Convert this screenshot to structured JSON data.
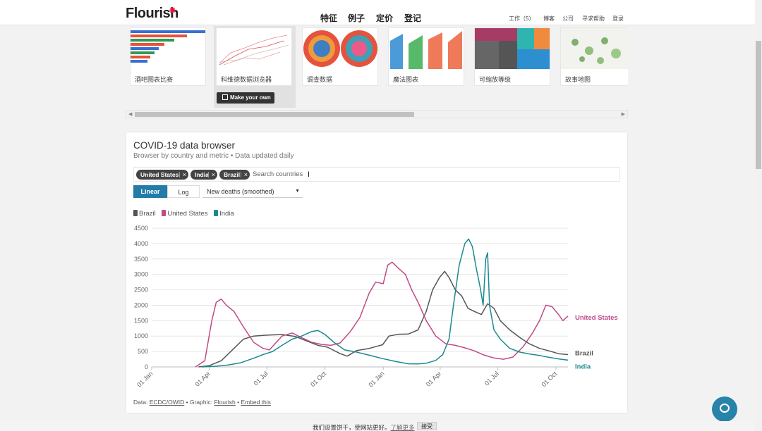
{
  "header": {
    "logo": "Flourish",
    "nav": [
      "特征",
      "例子",
      "定价",
      "登记"
    ],
    "right": [
      "工作（5）",
      "博客",
      "公司",
      "寻求帮助",
      "登录"
    ]
  },
  "gallery": {
    "cards": [
      {
        "label": "酒吧图表比赛",
        "icon": "bar-race-thumbnail"
      },
      {
        "label": "科维德数据浏览器",
        "icon": "line-chart-thumbnail"
      },
      {
        "label": "调查数据",
        "icon": "dot-cluster-thumbnail"
      },
      {
        "label": "魔法图表",
        "icon": "area-chart-thumbnail"
      },
      {
        "label": "可缩放等级",
        "icon": "treemap-thumbnail"
      },
      {
        "label": "故事地图",
        "icon": "map-thumbnail"
      }
    ],
    "make_button": "Make your own"
  },
  "chart_card": {
    "title": "COVID-19 data browser",
    "subtitle": "Browser by country and metric • Data updated daily",
    "chips": [
      "United States",
      "India",
      "Brazil"
    ],
    "search_placeholder": "Search countries",
    "scale_buttons": [
      "Linear",
      "Log"
    ],
    "metric_select": "New deaths (smoothed)",
    "footer": {
      "prefix": "Data: ",
      "data_source": "ECDC/OWID",
      "mid": " • Graphic: ",
      "graphic": "Flourish",
      "sep": " • ",
      "embed": "Embed this"
    }
  },
  "chart_data": {
    "type": "line",
    "title": "",
    "xlabel": "",
    "ylabel": "",
    "ylim": [
      0,
      4500
    ],
    "yticks": [
      0,
      500,
      1000,
      1500,
      2000,
      2500,
      3000,
      3500,
      4000,
      4500
    ],
    "xticks": [
      "01 Jan",
      "01 Apr",
      "01 Jul",
      "01 Oct",
      "01 Jan",
      "01 Apr",
      "01 Jul",
      "01 Oct"
    ],
    "x_tick_dates": [
      "2020-01-01",
      "2020-04-01",
      "2020-07-01",
      "2020-10-01",
      "2021-01-01",
      "2021-04-01",
      "2021-07-01",
      "2021-10-01"
    ],
    "x_range": [
      "2020-01-01",
      "2021-10-20"
    ],
    "grid": true,
    "legend": "top-left",
    "series": [
      {
        "name": "Brazil",
        "color": "#555555",
        "end_label": "Brazil",
        "points": [
          [
            "2020-03-15",
            0
          ],
          [
            "2020-04-01",
            40
          ],
          [
            "2020-04-20",
            200
          ],
          [
            "2020-05-10",
            600
          ],
          [
            "2020-05-25",
            900
          ],
          [
            "2020-06-10",
            1000
          ],
          [
            "2020-07-01",
            1030
          ],
          [
            "2020-07-25",
            1050
          ],
          [
            "2020-08-15",
            990
          ],
          [
            "2020-09-01",
            850
          ],
          [
            "2020-09-20",
            700
          ],
          [
            "2020-10-05",
            640
          ],
          [
            "2020-10-25",
            430
          ],
          [
            "2020-11-05",
            350
          ],
          [
            "2020-11-20",
            530
          ],
          [
            "2020-12-10",
            600
          ],
          [
            "2020-12-31",
            720
          ],
          [
            "2021-01-10",
            1000
          ],
          [
            "2021-01-25",
            1060
          ],
          [
            "2021-02-10",
            1070
          ],
          [
            "2021-02-25",
            1200
          ],
          [
            "2021-03-10",
            1800
          ],
          [
            "2021-03-20",
            2500
          ],
          [
            "2021-03-31",
            2900
          ],
          [
            "2021-04-08",
            3100
          ],
          [
            "2021-04-15",
            2900
          ],
          [
            "2021-04-25",
            2500
          ],
          [
            "2021-05-05",
            2300
          ],
          [
            "2021-05-15",
            1900
          ],
          [
            "2021-05-25",
            1800
          ],
          [
            "2021-06-05",
            1700
          ],
          [
            "2021-06-15",
            2050
          ],
          [
            "2021-06-25",
            1900
          ],
          [
            "2021-07-05",
            1500
          ],
          [
            "2021-07-20",
            1200
          ],
          [
            "2021-08-05",
            950
          ],
          [
            "2021-08-20",
            750
          ],
          [
            "2021-09-05",
            600
          ],
          [
            "2021-09-20",
            520
          ],
          [
            "2021-10-05",
            430
          ],
          [
            "2021-10-20",
            400
          ]
        ]
      },
      {
        "name": "United States",
        "color": "#c04a86",
        "end_label": "United States",
        "points": [
          [
            "2020-03-10",
            0
          ],
          [
            "2020-03-25",
            200
          ],
          [
            "2020-04-05",
            1500
          ],
          [
            "2020-04-12",
            2100
          ],
          [
            "2020-04-20",
            2200
          ],
          [
            "2020-04-28",
            2000
          ],
          [
            "2020-05-10",
            1800
          ],
          [
            "2020-05-25",
            1300
          ],
          [
            "2020-06-10",
            800
          ],
          [
            "2020-06-25",
            600
          ],
          [
            "2020-07-05",
            550
          ],
          [
            "2020-07-25",
            1000
          ],
          [
            "2020-08-10",
            1100
          ],
          [
            "2020-08-25",
            950
          ],
          [
            "2020-09-10",
            800
          ],
          [
            "2020-09-25",
            730
          ],
          [
            "2020-10-10",
            700
          ],
          [
            "2020-10-25",
            780
          ],
          [
            "2020-11-10",
            1150
          ],
          [
            "2020-11-25",
            1600
          ],
          [
            "2020-12-10",
            2400
          ],
          [
            "2020-12-20",
            2750
          ],
          [
            "2021-01-01",
            2700
          ],
          [
            "2021-01-08",
            3300
          ],
          [
            "2021-01-15",
            3400
          ],
          [
            "2021-01-25",
            3200
          ],
          [
            "2021-02-05",
            3000
          ],
          [
            "2021-02-15",
            2500
          ],
          [
            "2021-02-25",
            2100
          ],
          [
            "2021-03-10",
            1500
          ],
          [
            "2021-03-25",
            1000
          ],
          [
            "2021-04-10",
            750
          ],
          [
            "2021-04-25",
            700
          ],
          [
            "2021-05-10",
            620
          ],
          [
            "2021-05-25",
            520
          ],
          [
            "2021-06-10",
            380
          ],
          [
            "2021-06-25",
            290
          ],
          [
            "2021-07-10",
            250
          ],
          [
            "2021-07-25",
            320
          ],
          [
            "2021-08-10",
            650
          ],
          [
            "2021-08-25",
            1100
          ],
          [
            "2021-09-05",
            1500
          ],
          [
            "2021-09-15",
            2000
          ],
          [
            "2021-09-25",
            1950
          ],
          [
            "2021-10-05",
            1700
          ],
          [
            "2021-10-12",
            1500
          ],
          [
            "2021-10-20",
            1650
          ]
        ]
      },
      {
        "name": "India",
        "color": "#1a8a8f",
        "end_label": "India",
        "points": [
          [
            "2020-03-20",
            0
          ],
          [
            "2020-04-10",
            20
          ],
          [
            "2020-04-30",
            60
          ],
          [
            "2020-05-20",
            130
          ],
          [
            "2020-06-10",
            280
          ],
          [
            "2020-06-25",
            400
          ],
          [
            "2020-07-10",
            500
          ],
          [
            "2020-07-25",
            700
          ],
          [
            "2020-08-10",
            900
          ],
          [
            "2020-08-25",
            1000
          ],
          [
            "2020-09-10",
            1150
          ],
          [
            "2020-09-20",
            1180
          ],
          [
            "2020-10-01",
            1050
          ],
          [
            "2020-10-15",
            800
          ],
          [
            "2020-11-01",
            550
          ],
          [
            "2020-11-20",
            480
          ],
          [
            "2020-12-10",
            380
          ],
          [
            "2020-12-31",
            270
          ],
          [
            "2021-01-20",
            180
          ],
          [
            "2021-02-10",
            100
          ],
          [
            "2021-02-25",
            95
          ],
          [
            "2021-03-10",
            120
          ],
          [
            "2021-03-25",
            210
          ],
          [
            "2021-04-05",
            400
          ],
          [
            "2021-04-15",
            900
          ],
          [
            "2021-04-22",
            2000
          ],
          [
            "2021-05-01",
            3300
          ],
          [
            "2021-05-10",
            4000
          ],
          [
            "2021-05-16",
            4150
          ],
          [
            "2021-05-22",
            3900
          ],
          [
            "2021-05-28",
            3200
          ],
          [
            "2021-06-03",
            2600
          ],
          [
            "2021-06-08",
            2000
          ],
          [
            "2021-06-12",
            3500
          ],
          [
            "2021-06-15",
            3700
          ],
          [
            "2021-06-18",
            2000
          ],
          [
            "2021-06-25",
            1200
          ],
          [
            "2021-07-05",
            900
          ],
          [
            "2021-07-20",
            600
          ],
          [
            "2021-08-05",
            480
          ],
          [
            "2021-08-20",
            420
          ],
          [
            "2021-09-05",
            370
          ],
          [
            "2021-09-20",
            310
          ],
          [
            "2021-10-05",
            260
          ],
          [
            "2021-10-20",
            220
          ]
        ]
      }
    ]
  },
  "cookie_bar": {
    "text": "我们设置饼干，使网站更好。",
    "more": "了解更多",
    "accept": "接受"
  }
}
